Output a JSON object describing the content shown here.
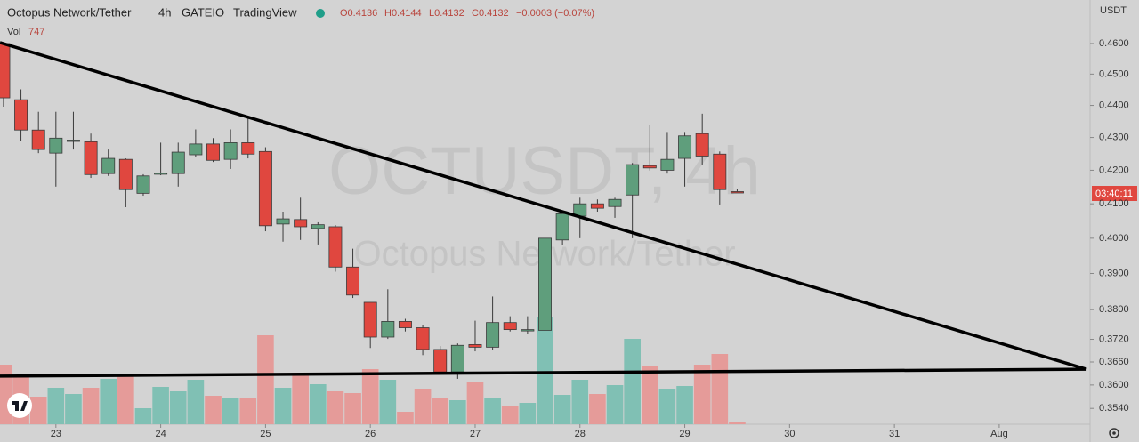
{
  "chart_data": {
    "type": "candlestick",
    "title": "Octopus Network/Tether",
    "interval": "4h",
    "exchange": "GATEIO",
    "source": "TradingView",
    "ohlc_header": [
      "O0.4136",
      "H0.4144",
      "L0.4132",
      "C0.4132",
      "−0.0003 (−0.07%)"
    ],
    "volume_label": "Vol",
    "volume_last": "747",
    "watermark": "OCTUSDT, 4h",
    "watermark_sub": "Octopus Network/Tether",
    "currency": "USDT",
    "countdown": "03:40:11",
    "log_scale": true,
    "up_color": "#5f9e7c",
    "down_color": "#e0473f",
    "volume_up_color": "#80c0b4",
    "volume_down_color": "#e59b99",
    "open": [
      0.46,
      0.4418,
      0.4323,
      0.4252,
      0.429,
      0.4287,
      0.419,
      0.4233,
      0.4131,
      0.419,
      0.419,
      0.4247,
      0.428,
      0.4233,
      0.4284,
      0.4257,
      0.4041,
      0.4054,
      0.4028,
      0.4033,
      0.3918,
      0.382,
      0.3726,
      0.3768,
      0.3751,
      0.3693,
      0.3634,
      0.3706,
      0.3699,
      0.3765,
      0.3744,
      0.3744,
      0.3995,
      0.4064,
      0.41,
      0.4092,
      0.4126,
      0.4214,
      0.42,
      0.4236,
      0.4312,
      0.4249,
      0.4136
    ],
    "high": [
      0.46,
      0.4451,
      0.438,
      0.438,
      0.438,
      0.4312,
      0.4263,
      0.4236,
      0.4188,
      0.4284,
      0.4284,
      0.4325,
      0.4298,
      0.4325,
      0.4359,
      0.427,
      0.4077,
      0.4118,
      0.4046,
      0.4038,
      0.397,
      0.382,
      0.3856,
      0.3775,
      0.3758,
      0.3702,
      0.3709,
      0.377,
      0.3836,
      0.3782,
      0.3782,
      0.4025,
      0.4072,
      0.4118,
      0.4113,
      0.4118,
      0.4222,
      0.4339,
      0.4317,
      0.4317,
      0.4374,
      0.4257,
      0.4144
    ],
    "low": [
      0.4396,
      0.429,
      0.4252,
      0.4151,
      0.4263,
      0.4177,
      0.4183,
      0.409,
      0.4124,
      0.4185,
      0.4151,
      0.4241,
      0.4225,
      0.4204,
      0.4236,
      0.402,
      0.399,
      0.3995,
      0.3982,
      0.3905,
      0.3832,
      0.3697,
      0.3721,
      0.3741,
      0.3678,
      0.3627,
      0.3616,
      0.3688,
      0.3692,
      0.3741,
      0.3734,
      0.3721,
      0.398,
      0.4,
      0.4077,
      0.4059,
      0.4,
      0.4199,
      0.419,
      0.4151,
      0.4217,
      0.4098,
      0.4132
    ],
    "close": [
      0.4424,
      0.4323,
      0.4263,
      0.4298,
      0.4292,
      0.4187,
      0.4236,
      0.4142,
      0.4183,
      0.4192,
      0.4255,
      0.428,
      0.423,
      0.4284,
      0.4249,
      0.4036,
      0.4056,
      0.4033,
      0.4039,
      0.3918,
      0.384,
      0.3726,
      0.3768,
      0.3751,
      0.3693,
      0.3634,
      0.3704,
      0.3699,
      0.3765,
      0.3746,
      0.3746,
      0.4,
      0.4071,
      0.41,
      0.4087,
      0.4113,
      0.4217,
      0.4207,
      0.4233,
      0.4305,
      0.4243,
      0.4142,
      0.4132
    ],
    "volume": [
      16750,
      13500,
      7750,
      10250,
      8500,
      10250,
      12750,
      14250,
      4500,
      10500,
      9250,
      12500,
      8000,
      7500,
      7500,
      25000,
      10250,
      14500,
      11250,
      9250,
      8750,
      15500,
      12500,
      3500,
      10000,
      7250,
      6750,
      11750,
      7500,
      5000,
      6000,
      30000,
      8250,
      12500,
      8500,
      11000,
      24000,
      16250,
      10000,
      10750,
      16750,
      19750,
      747
    ],
    "xlim": [
      -0.2,
      62.2
    ],
    "xticks": [
      {
        "value": 3,
        "label": "23"
      },
      {
        "value": 9,
        "label": "24"
      },
      {
        "value": 15,
        "label": "25"
      },
      {
        "value": 21,
        "label": "26"
      },
      {
        "value": 27,
        "label": "27"
      },
      {
        "value": 33,
        "label": "28"
      },
      {
        "value": 39,
        "label": "29"
      },
      {
        "value": 45,
        "label": "30"
      },
      {
        "value": 51,
        "label": "31"
      },
      {
        "value": 57,
        "label": "Aug"
      }
    ],
    "ylim": [
      0.35,
      0.4746
    ],
    "yticks": [
      {
        "value": 0.46,
        "label": "0.4600"
      },
      {
        "value": 0.45,
        "label": "0.4500"
      },
      {
        "value": 0.44,
        "label": "0.4400"
      },
      {
        "value": 0.43,
        "label": "0.4300"
      },
      {
        "value": 0.42,
        "label": "0.4200"
      },
      {
        "value": 0.41,
        "label": "0.4100"
      },
      {
        "value": 0.4,
        "label": "0.4000"
      },
      {
        "value": 0.39,
        "label": "0.3900"
      },
      {
        "value": 0.38,
        "label": "0.3800"
      },
      {
        "value": 0.372,
        "label": "0.3720"
      },
      {
        "value": 0.366,
        "label": "0.3660"
      },
      {
        "value": 0.36,
        "label": "0.3600"
      },
      {
        "value": 0.354,
        "label": "0.3540"
      }
    ],
    "trendlines": [
      {
        "x": [
          -0.2,
          62.0
        ],
        "y": [
          0.4603,
          0.3641
        ],
        "color": "#000000"
      },
      {
        "x": [
          -0.2,
          62.0
        ],
        "y": [
          0.3623,
          0.3641
        ],
        "color": "#000000"
      }
    ]
  }
}
